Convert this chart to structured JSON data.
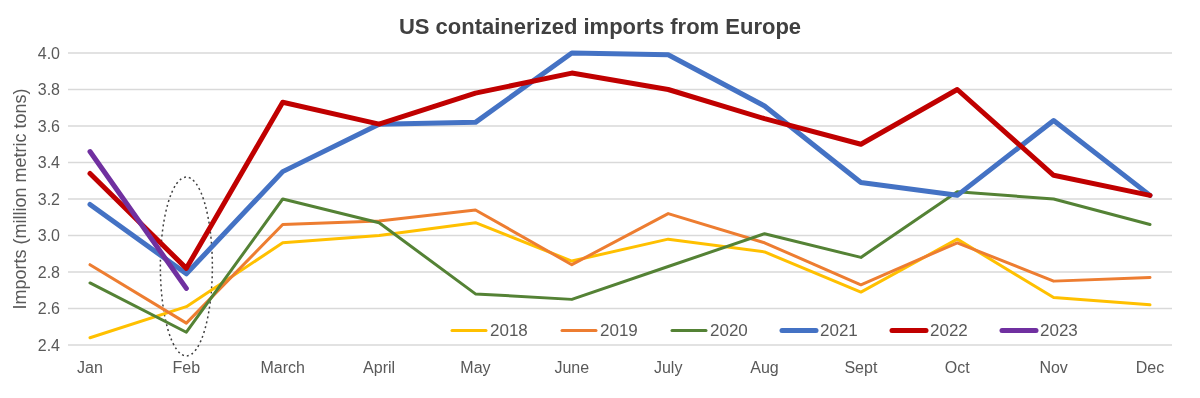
{
  "chart_data": {
    "type": "line",
    "title": "US containerized imports from Europe",
    "ylabel": "Imports (million metric tons)",
    "categories": [
      "Jan",
      "Feb",
      "March",
      "April",
      "May",
      "June",
      "July",
      "Aug",
      "Sept",
      "Oct",
      "Nov",
      "Dec"
    ],
    "series": [
      {
        "name": "2018",
        "color": "#ffc000",
        "values": [
          2.44,
          2.61,
          2.96,
          3.0,
          3.07,
          2.86,
          2.98,
          2.91,
          2.69,
          2.98,
          2.66,
          2.62
        ]
      },
      {
        "name": "2019",
        "color": "#ed7d31",
        "values": [
          2.84,
          2.52,
          3.06,
          3.08,
          3.14,
          2.84,
          3.12,
          2.96,
          2.73,
          2.96,
          2.75,
          2.77
        ]
      },
      {
        "name": "2020",
        "color": "#548235",
        "values": [
          2.74,
          2.47,
          3.2,
          3.07,
          2.68,
          2.65,
          2.83,
          3.01,
          2.88,
          3.24,
          3.2,
          3.06
        ]
      },
      {
        "name": "2021",
        "color": "#4472c4",
        "values": [
          3.17,
          2.79,
          3.35,
          3.61,
          3.62,
          4.0,
          3.99,
          3.71,
          3.29,
          3.22,
          3.63,
          3.22
        ]
      },
      {
        "name": "2022",
        "color": "#c00000",
        "values": [
          3.34,
          2.82,
          3.73,
          3.61,
          3.78,
          3.89,
          3.8,
          3.64,
          3.5,
          3.8,
          3.33,
          3.22
        ]
      },
      {
        "name": "2023",
        "color": "#7030a0",
        "values": [
          3.46,
          2.71,
          null,
          null,
          null,
          null,
          null,
          null,
          null,
          null,
          null,
          null
        ]
      }
    ],
    "ylim": [
      2.4,
      4.0
    ],
    "yticks": [
      2.4,
      2.6,
      2.8,
      {
        "value": 3,
        "label": "3.0"
      },
      3.2,
      3.4,
      3.6,
      3.8,
      {
        "value": 4,
        "label": "4.0"
      }
    ],
    "grid": "y",
    "legend": "bottom right",
    "line_style": "solid"
  }
}
